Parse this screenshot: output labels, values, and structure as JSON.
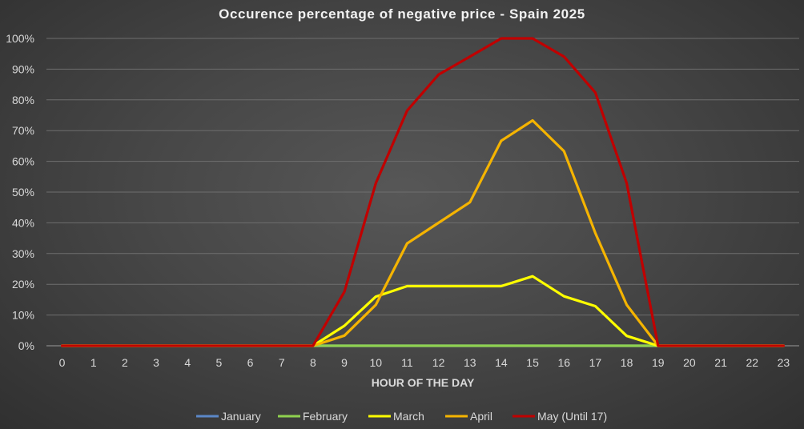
{
  "chart_data": {
    "type": "line",
    "title": "Occurence percentage of negative price - Spain 2025",
    "xlabel": "HOUR OF THE DAY",
    "ylabel": "",
    "x": [
      0,
      1,
      2,
      3,
      4,
      5,
      6,
      7,
      8,
      9,
      10,
      11,
      12,
      13,
      14,
      15,
      16,
      17,
      18,
      19,
      20,
      21,
      22,
      23
    ],
    "x_tick_labels": [
      "0",
      "1",
      "2",
      "3",
      "4",
      "5",
      "6",
      "7",
      "8",
      "9",
      "10",
      "11",
      "12",
      "13",
      "14",
      "15",
      "16",
      "17",
      "18",
      "19",
      "20",
      "21",
      "22",
      "23"
    ],
    "ylim": [
      0,
      100
    ],
    "y_ticks": [
      0,
      10,
      20,
      30,
      40,
      50,
      60,
      70,
      80,
      90,
      100
    ],
    "y_tick_labels": [
      "0%",
      "10%",
      "20%",
      "30%",
      "40%",
      "50%",
      "60%",
      "70%",
      "80%",
      "90%",
      "100%"
    ],
    "grid": true,
    "legend_position": "bottom",
    "series": [
      {
        "name": "January",
        "color": "#5b87c7",
        "values": [
          0,
          0,
          0,
          0,
          0,
          0,
          0,
          0,
          0,
          0,
          0,
          0,
          0,
          0,
          0,
          0,
          0,
          0,
          0,
          0,
          0,
          0,
          0,
          0
        ]
      },
      {
        "name": "February",
        "color": "#8fd14f",
        "values": [
          0,
          0,
          0,
          0,
          0,
          0,
          0,
          0,
          0,
          0,
          0,
          0,
          0,
          0,
          0,
          0,
          0,
          0,
          0,
          0,
          0,
          0,
          0,
          0
        ]
      },
      {
        "name": "March",
        "color": "#ffff00",
        "values": [
          0,
          0,
          0,
          0,
          0,
          0,
          0,
          0,
          0,
          6.5,
          16,
          19.4,
          19.4,
          19.4,
          19.4,
          22.6,
          16.1,
          12.9,
          3.2,
          0,
          0,
          0,
          0,
          0
        ]
      },
      {
        "name": "April",
        "color": "#f5b400",
        "values": [
          0,
          0,
          0,
          0,
          0,
          0,
          0,
          0,
          0,
          3.3,
          13.3,
          33.3,
          40,
          46.7,
          66.7,
          73.3,
          63.3,
          36.7,
          13.3,
          0,
          0,
          0,
          0,
          0
        ]
      },
      {
        "name": "May (Until 17)",
        "color": "#c00000",
        "values": [
          0,
          0,
          0,
          0,
          0,
          0,
          0,
          0,
          0,
          17.6,
          52.9,
          76.5,
          88.2,
          94.1,
          100,
          100,
          94.1,
          82.4,
          52.9,
          0,
          0,
          0,
          0,
          0
        ]
      }
    ]
  }
}
